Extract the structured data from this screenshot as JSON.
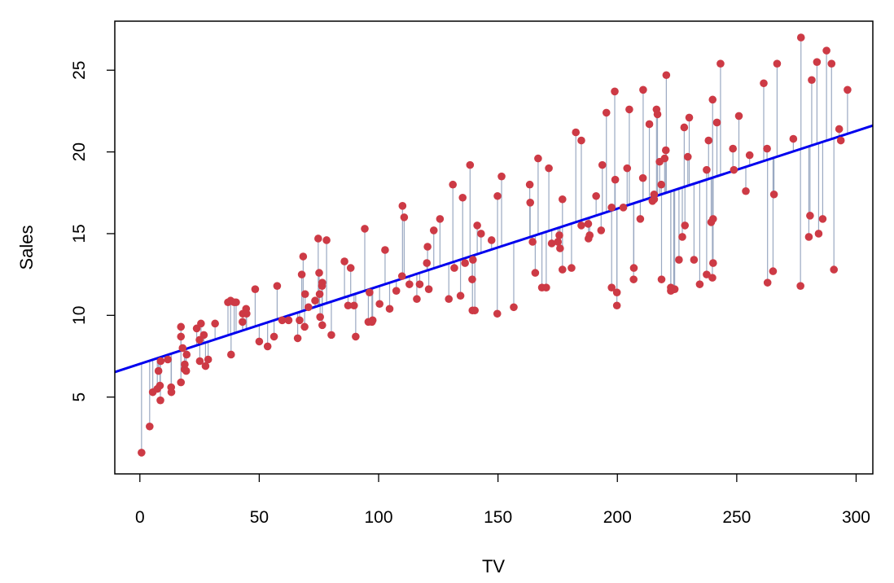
{
  "chart_data": {
    "type": "scatter",
    "title": "",
    "xlabel": "TV",
    "ylabel": "Sales",
    "xlim": [
      -10.5,
      307
    ],
    "ylim": [
      0.3,
      28
    ],
    "xticks": [
      0,
      50,
      100,
      150,
      200,
      250,
      300
    ],
    "yticks": [
      5,
      10,
      15,
      20,
      25
    ],
    "grid": false,
    "fit_line": {
      "intercept": 7.03,
      "slope": 0.0475,
      "color": "#0000ee"
    },
    "colors": {
      "point": "#cd3a45",
      "residual": "#9aa9c2",
      "line": "#0000ee"
    },
    "points": [
      [
        0.7,
        1.6
      ],
      [
        4.1,
        3.2
      ],
      [
        5.4,
        5.3
      ],
      [
        7.3,
        5.5
      ],
      [
        8.4,
        5.7
      ],
      [
        8.6,
        4.8
      ],
      [
        7.8,
        6.6
      ],
      [
        8.7,
        7.2
      ],
      [
        11.7,
        7.3
      ],
      [
        13.1,
        5.6
      ],
      [
        13.2,
        5.3
      ],
      [
        17.2,
        5.9
      ],
      [
        17.2,
        8.7
      ],
      [
        17.9,
        8.0
      ],
      [
        18.7,
        6.7
      ],
      [
        18.8,
        7.0
      ],
      [
        19.4,
        6.6
      ],
      [
        19.6,
        7.6
      ],
      [
        17.2,
        9.3
      ],
      [
        23.8,
        9.2
      ],
      [
        25.0,
        8.5
      ],
      [
        25.1,
        7.2
      ],
      [
        25.6,
        9.5
      ],
      [
        26.8,
        8.8
      ],
      [
        27.5,
        6.9
      ],
      [
        28.6,
        7.3
      ],
      [
        31.5,
        9.5
      ],
      [
        36.9,
        10.8
      ],
      [
        38.0,
        10.9
      ],
      [
        38.2,
        7.6
      ],
      [
        39.5,
        10.8
      ],
      [
        40.3,
        10.8
      ],
      [
        43.0,
        9.6
      ],
      [
        43.1,
        10.1
      ],
      [
        44.5,
        10.4
      ],
      [
        44.7,
        10.1
      ],
      [
        48.3,
        11.6
      ],
      [
        50.0,
        8.4
      ],
      [
        53.5,
        8.1
      ],
      [
        56.2,
        8.7
      ],
      [
        57.5,
        11.8
      ],
      [
        59.6,
        9.7
      ],
      [
        62.3,
        9.7
      ],
      [
        66.1,
        8.6
      ],
      [
        66.9,
        9.7
      ],
      [
        67.8,
        12.5
      ],
      [
        68.4,
        13.6
      ],
      [
        69.0,
        9.3
      ],
      [
        69.2,
        11.3
      ],
      [
        70.6,
        10.5
      ],
      [
        73.4,
        10.9
      ],
      [
        74.7,
        14.7
      ],
      [
        75.1,
        12.6
      ],
      [
        75.3,
        11.3
      ],
      [
        75.5,
        9.9
      ],
      [
        76.3,
        11.8
      ],
      [
        76.4,
        12.0
      ],
      [
        76.4,
        9.4
      ],
      [
        78.2,
        14.6
      ],
      [
        80.2,
        8.8
      ],
      [
        85.7,
        13.3
      ],
      [
        87.2,
        10.6
      ],
      [
        88.3,
        12.9
      ],
      [
        89.7,
        10.6
      ],
      [
        90.4,
        8.7
      ],
      [
        94.2,
        15.3
      ],
      [
        95.7,
        9.6
      ],
      [
        96.2,
        11.4
      ],
      [
        97.2,
        9.6
      ],
      [
        97.5,
        9.7
      ],
      [
        100.4,
        10.7
      ],
      [
        102.7,
        14.0
      ],
      [
        104.6,
        10.4
      ],
      [
        107.4,
        11.5
      ],
      [
        109.8,
        12.4
      ],
      [
        110.7,
        16.0
      ],
      [
        110.0,
        16.7
      ],
      [
        112.9,
        11.9
      ],
      [
        116.0,
        11.0
      ],
      [
        117.2,
        11.9
      ],
      [
        120.2,
        13.2
      ],
      [
        120.5,
        14.2
      ],
      [
        121.0,
        11.6
      ],
      [
        123.1,
        15.2
      ],
      [
        125.7,
        15.9
      ],
      [
        129.4,
        11.0
      ],
      [
        131.1,
        18.0
      ],
      [
        131.7,
        12.9
      ],
      [
        134.3,
        11.2
      ],
      [
        135.2,
        17.2
      ],
      [
        136.2,
        13.2
      ],
      [
        138.3,
        19.2
      ],
      [
        139.2,
        12.2
      ],
      [
        139.3,
        10.3
      ],
      [
        139.5,
        13.4
      ],
      [
        140.3,
        10.3
      ],
      [
        141.3,
        15.5
      ],
      [
        142.9,
        15.0
      ],
      [
        147.3,
        14.6
      ],
      [
        149.7,
        10.1
      ],
      [
        149.8,
        17.3
      ],
      [
        151.5,
        18.5
      ],
      [
        156.6,
        10.5
      ],
      [
        163.3,
        18.0
      ],
      [
        163.5,
        16.9
      ],
      [
        164.5,
        14.5
      ],
      [
        165.6,
        12.6
      ],
      [
        166.8,
        19.6
      ],
      [
        168.4,
        11.7
      ],
      [
        170.2,
        11.7
      ],
      [
        171.3,
        19.0
      ],
      [
        172.5,
        14.4
      ],
      [
        175.1,
        14.5
      ],
      [
        175.7,
        14.9
      ],
      [
        176.0,
        14.1
      ],
      [
        177.0,
        12.8
      ],
      [
        177.0,
        17.1
      ],
      [
        180.8,
        12.9
      ],
      [
        182.6,
        21.2
      ],
      [
        184.9,
        15.5
      ],
      [
        184.9,
        20.7
      ],
      [
        187.8,
        15.6
      ],
      [
        187.9,
        14.7
      ],
      [
        188.4,
        14.9
      ],
      [
        191.1,
        17.3
      ],
      [
        193.2,
        15.2
      ],
      [
        193.7,
        19.2
      ],
      [
        195.4,
        22.4
      ],
      [
        197.6,
        11.7
      ],
      [
        197.6,
        16.6
      ],
      [
        198.9,
        23.7
      ],
      [
        199.1,
        18.3
      ],
      [
        199.8,
        10.6
      ],
      [
        199.8,
        11.4
      ],
      [
        202.5,
        16.6
      ],
      [
        204.1,
        19.0
      ],
      [
        205.0,
        22.6
      ],
      [
        206.8,
        12.2
      ],
      [
        206.9,
        12.9
      ],
      [
        209.6,
        15.9
      ],
      [
        210.7,
        18.4
      ],
      [
        210.8,
        23.8
      ],
      [
        213.4,
        21.7
      ],
      [
        214.7,
        17.0
      ],
      [
        215.4,
        17.1
      ],
      [
        215.4,
        17.4
      ],
      [
        216.4,
        22.6
      ],
      [
        216.8,
        22.3
      ],
      [
        217.7,
        19.4
      ],
      [
        218.4,
        18.0
      ],
      [
        218.5,
        12.2
      ],
      [
        219.8,
        19.6
      ],
      [
        220.3,
        20.1
      ],
      [
        220.5,
        24.7
      ],
      [
        222.4,
        11.7
      ],
      [
        222.4,
        11.5
      ],
      [
        223.6,
        11.6
      ],
      [
        224.0,
        11.6
      ],
      [
        225.8,
        13.4
      ],
      [
        227.2,
        14.8
      ],
      [
        228.0,
        21.5
      ],
      [
        228.3,
        15.5
      ],
      [
        229.5,
        19.7
      ],
      [
        230.1,
        22.1
      ],
      [
        232.1,
        13.4
      ],
      [
        234.5,
        11.9
      ],
      [
        237.4,
        18.9
      ],
      [
        237.4,
        12.5
      ],
      [
        238.2,
        20.7
      ],
      [
        239.3,
        15.7
      ],
      [
        239.8,
        12.3
      ],
      [
        239.9,
        23.2
      ],
      [
        240.1,
        15.9
      ],
      [
        240.1,
        13.2
      ],
      [
        241.7,
        21.8
      ],
      [
        243.2,
        25.4
      ],
      [
        248.4,
        20.2
      ],
      [
        248.8,
        18.9
      ],
      [
        250.9,
        22.2
      ],
      [
        253.8,
        17.6
      ],
      [
        255.4,
        19.8
      ],
      [
        261.3,
        24.2
      ],
      [
        262.7,
        20.2
      ],
      [
        262.9,
        12.0
      ],
      [
        265.2,
        12.7
      ],
      [
        265.6,
        17.4
      ],
      [
        266.9,
        25.4
      ],
      [
        273.7,
        20.8
      ],
      [
        276.7,
        11.8
      ],
      [
        276.9,
        27.0
      ],
      [
        280.2,
        14.8
      ],
      [
        280.7,
        16.1
      ],
      [
        281.4,
        24.4
      ],
      [
        283.6,
        25.5
      ],
      [
        284.3,
        15.0
      ],
      [
        286.0,
        15.9
      ],
      [
        287.6,
        26.2
      ],
      [
        289.7,
        25.4
      ],
      [
        290.7,
        12.8
      ],
      [
        292.9,
        21.4
      ],
      [
        293.6,
        20.7
      ],
      [
        296.4,
        23.8
      ]
    ]
  }
}
